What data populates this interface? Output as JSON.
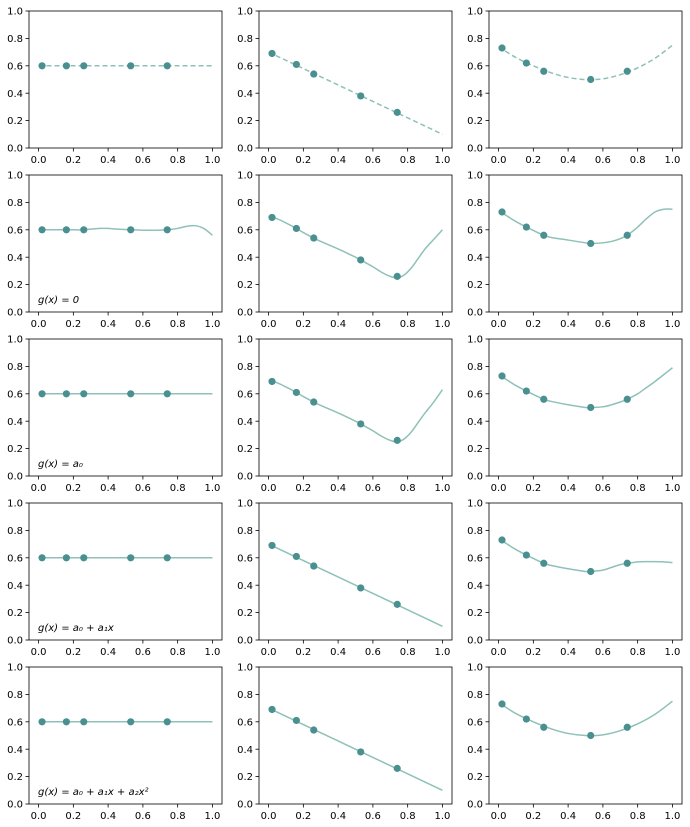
{
  "figure": {
    "point_color": "#4a9090",
    "curve_color": "#8fc1b8",
    "axes_color": "#000000"
  },
  "chart_data": [
    {
      "type": "line",
      "row": 0,
      "col": 0,
      "x": [
        0.02,
        0.16,
        0.26,
        0.53,
        0.74
      ],
      "y": [
        0.6,
        0.6,
        0.6,
        0.6,
        0.6
      ],
      "curve": {
        "style": "dashed",
        "x": [
          0,
          0.2,
          0.4,
          0.6,
          0.8,
          1.0
        ],
        "y": [
          0.6,
          0.6,
          0.6,
          0.6,
          0.6,
          0.6
        ]
      },
      "xlim": [
        0,
        1
      ],
      "ylim": [
        0,
        1
      ],
      "xticks": [
        "0.0",
        "0.2",
        "0.4",
        "0.6",
        "0.8",
        "1.0"
      ],
      "yticks": [
        "0.0",
        "0.2",
        "0.4",
        "0.6",
        "0.8",
        "1.0"
      ],
      "annotation": ""
    },
    {
      "type": "line",
      "row": 0,
      "col": 1,
      "x": [
        0.02,
        0.16,
        0.26,
        0.53,
        0.74
      ],
      "y": [
        0.69,
        0.61,
        0.54,
        0.38,
        0.26
      ],
      "curve": {
        "style": "dashed",
        "x": [
          0,
          0.2,
          0.4,
          0.6,
          0.8,
          1.0
        ],
        "y": [
          0.7,
          0.58,
          0.46,
          0.34,
          0.22,
          0.1
        ]
      },
      "xlim": [
        0,
        1
      ],
      "ylim": [
        0,
        1
      ],
      "xticks": [
        "0.0",
        "0.2",
        "0.4",
        "0.6",
        "0.8",
        "1.0"
      ],
      "yticks": [
        "0.0",
        "0.2",
        "0.4",
        "0.6",
        "0.8",
        "1.0"
      ],
      "annotation": ""
    },
    {
      "type": "line",
      "row": 0,
      "col": 2,
      "x": [
        0.02,
        0.16,
        0.26,
        0.53,
        0.74
      ],
      "y": [
        0.73,
        0.62,
        0.56,
        0.5,
        0.56
      ],
      "curve": {
        "style": "dashed",
        "x": [
          0,
          0.1,
          0.2,
          0.3,
          0.4,
          0.5,
          0.6,
          0.7,
          0.8,
          0.9,
          1.0
        ],
        "y": [
          0.74,
          0.66,
          0.6,
          0.55,
          0.515,
          0.5,
          0.505,
          0.535,
          0.585,
          0.655,
          0.75
        ]
      },
      "xlim": [
        0,
        1
      ],
      "ylim": [
        0,
        1
      ],
      "xticks": [
        "0.0",
        "0.2",
        "0.4",
        "0.6",
        "0.8",
        "1.0"
      ],
      "yticks": [
        "0.0",
        "0.2",
        "0.4",
        "0.6",
        "0.8",
        "1.0"
      ],
      "annotation": ""
    },
    {
      "type": "line",
      "row": 1,
      "col": 0,
      "x": [
        0.02,
        0.16,
        0.26,
        0.53,
        0.74
      ],
      "y": [
        0.6,
        0.6,
        0.6,
        0.6,
        0.6
      ],
      "curve": {
        "style": "solid",
        "x": [
          0,
          0.05,
          0.1,
          0.16,
          0.2,
          0.26,
          0.3,
          0.35,
          0.4,
          0.45,
          0.53,
          0.6,
          0.65,
          0.7,
          0.74,
          0.8,
          0.85,
          0.9,
          0.95,
          1.0
        ],
        "y": [
          0.6,
          0.6,
          0.6,
          0.6,
          0.6,
          0.6,
          0.605,
          0.61,
          0.61,
          0.605,
          0.6,
          0.597,
          0.597,
          0.598,
          0.6,
          0.61,
          0.625,
          0.63,
          0.61,
          0.56
        ]
      },
      "xlim": [
        0,
        1
      ],
      "ylim": [
        0,
        1
      ],
      "xticks": [
        "0.0",
        "0.2",
        "0.4",
        "0.6",
        "0.8",
        "1.0"
      ],
      "yticks": [
        "0.0",
        "0.2",
        "0.4",
        "0.6",
        "0.8",
        "1.0"
      ],
      "annotation": "g(x) = 0"
    },
    {
      "type": "line",
      "row": 1,
      "col": 1,
      "x": [
        0.02,
        0.16,
        0.26,
        0.53,
        0.74
      ],
      "y": [
        0.69,
        0.61,
        0.54,
        0.38,
        0.26
      ],
      "curve": {
        "style": "solid",
        "x": [
          0,
          0.05,
          0.1,
          0.16,
          0.2,
          0.26,
          0.3,
          0.4,
          0.5,
          0.53,
          0.6,
          0.65,
          0.7,
          0.74,
          0.78,
          0.82,
          0.86,
          0.9,
          0.95,
          1.0
        ],
        "y": [
          0.7,
          0.68,
          0.65,
          0.61,
          0.58,
          0.54,
          0.515,
          0.46,
          0.4,
          0.38,
          0.33,
          0.29,
          0.26,
          0.25,
          0.27,
          0.32,
          0.39,
          0.46,
          0.53,
          0.6
        ]
      },
      "xlim": [
        0,
        1
      ],
      "ylim": [
        0,
        1
      ],
      "xticks": [
        "0.0",
        "0.2",
        "0.4",
        "0.6",
        "0.8",
        "1.0"
      ],
      "yticks": [
        "0.0",
        "0.2",
        "0.4",
        "0.6",
        "0.8",
        "1.0"
      ],
      "annotation": ""
    },
    {
      "type": "line",
      "row": 1,
      "col": 2,
      "x": [
        0.02,
        0.16,
        0.26,
        0.53,
        0.74
      ],
      "y": [
        0.73,
        0.62,
        0.56,
        0.5,
        0.56
      ],
      "curve": {
        "style": "solid",
        "x": [
          0,
          0.05,
          0.1,
          0.16,
          0.2,
          0.26,
          0.3,
          0.4,
          0.5,
          0.53,
          0.6,
          0.65,
          0.7,
          0.74,
          0.8,
          0.85,
          0.9,
          0.95,
          1.0
        ],
        "y": [
          0.74,
          0.7,
          0.66,
          0.62,
          0.595,
          0.56,
          0.545,
          0.525,
          0.505,
          0.5,
          0.505,
          0.515,
          0.535,
          0.56,
          0.62,
          0.68,
          0.73,
          0.75,
          0.75
        ]
      },
      "xlim": [
        0,
        1
      ],
      "ylim": [
        0,
        1
      ],
      "xticks": [
        "0.0",
        "0.2",
        "0.4",
        "0.6",
        "0.8",
        "1.0"
      ],
      "yticks": [
        "0.0",
        "0.2",
        "0.4",
        "0.6",
        "0.8",
        "1.0"
      ],
      "annotation": ""
    },
    {
      "type": "line",
      "row": 2,
      "col": 0,
      "x": [
        0.02,
        0.16,
        0.26,
        0.53,
        0.74
      ],
      "y": [
        0.6,
        0.6,
        0.6,
        0.6,
        0.6
      ],
      "curve": {
        "style": "solid",
        "x": [
          0,
          0.2,
          0.4,
          0.6,
          0.8,
          1.0
        ],
        "y": [
          0.6,
          0.6,
          0.6,
          0.6,
          0.6,
          0.6
        ]
      },
      "xlim": [
        0,
        1
      ],
      "ylim": [
        0,
        1
      ],
      "xticks": [
        "0.0",
        "0.2",
        "0.4",
        "0.6",
        "0.8",
        "1.0"
      ],
      "yticks": [
        "0.0",
        "0.2",
        "0.4",
        "0.6",
        "0.8",
        "1.0"
      ],
      "annotation": "g(x) = a₀"
    },
    {
      "type": "line",
      "row": 2,
      "col": 1,
      "x": [
        0.02,
        0.16,
        0.26,
        0.53,
        0.74
      ],
      "y": [
        0.69,
        0.61,
        0.54,
        0.38,
        0.26
      ],
      "curve": {
        "style": "solid",
        "x": [
          0,
          0.05,
          0.1,
          0.16,
          0.2,
          0.26,
          0.3,
          0.4,
          0.5,
          0.53,
          0.6,
          0.65,
          0.7,
          0.74,
          0.78,
          0.82,
          0.86,
          0.9,
          0.95,
          1.0
        ],
        "y": [
          0.7,
          0.68,
          0.65,
          0.61,
          0.58,
          0.54,
          0.515,
          0.46,
          0.4,
          0.38,
          0.33,
          0.29,
          0.26,
          0.25,
          0.27,
          0.32,
          0.39,
          0.46,
          0.54,
          0.63
        ]
      },
      "xlim": [
        0,
        1
      ],
      "ylim": [
        0,
        1
      ],
      "xticks": [
        "0.0",
        "0.2",
        "0.4",
        "0.6",
        "0.8",
        "1.0"
      ],
      "yticks": [
        "0.0",
        "0.2",
        "0.4",
        "0.6",
        "0.8",
        "1.0"
      ],
      "annotation": ""
    },
    {
      "type": "line",
      "row": 2,
      "col": 2,
      "x": [
        0.02,
        0.16,
        0.26,
        0.53,
        0.74
      ],
      "y": [
        0.73,
        0.62,
        0.56,
        0.5,
        0.56
      ],
      "curve": {
        "style": "solid",
        "x": [
          0,
          0.05,
          0.1,
          0.16,
          0.2,
          0.26,
          0.3,
          0.4,
          0.5,
          0.53,
          0.6,
          0.65,
          0.7,
          0.74,
          0.8,
          0.85,
          0.9,
          0.95,
          1.0
        ],
        "y": [
          0.74,
          0.7,
          0.66,
          0.62,
          0.595,
          0.56,
          0.545,
          0.52,
          0.5,
          0.5,
          0.505,
          0.52,
          0.54,
          0.56,
          0.6,
          0.645,
          0.69,
          0.74,
          0.79
        ]
      },
      "xlim": [
        0,
        1
      ],
      "ylim": [
        0,
        1
      ],
      "xticks": [
        "0.0",
        "0.2",
        "0.4",
        "0.6",
        "0.8",
        "1.0"
      ],
      "yticks": [
        "0.0",
        "0.2",
        "0.4",
        "0.6",
        "0.8",
        "1.0"
      ],
      "annotation": ""
    },
    {
      "type": "line",
      "row": 3,
      "col": 0,
      "x": [
        0.02,
        0.16,
        0.26,
        0.53,
        0.74
      ],
      "y": [
        0.6,
        0.6,
        0.6,
        0.6,
        0.6
      ],
      "curve": {
        "style": "solid",
        "x": [
          0,
          0.2,
          0.4,
          0.6,
          0.8,
          1.0
        ],
        "y": [
          0.6,
          0.6,
          0.6,
          0.6,
          0.6,
          0.6
        ]
      },
      "xlim": [
        0,
        1
      ],
      "ylim": [
        0,
        1
      ],
      "xticks": [
        "0.0",
        "0.2",
        "0.4",
        "0.6",
        "0.8",
        "1.0"
      ],
      "yticks": [
        "0.0",
        "0.2",
        "0.4",
        "0.6",
        "0.8",
        "1.0"
      ],
      "annotation": "g(x) = a₀ + a₁x"
    },
    {
      "type": "line",
      "row": 3,
      "col": 1,
      "x": [
        0.02,
        0.16,
        0.26,
        0.53,
        0.74
      ],
      "y": [
        0.69,
        0.61,
        0.54,
        0.38,
        0.26
      ],
      "curve": {
        "style": "solid",
        "x": [
          0,
          0.2,
          0.4,
          0.6,
          0.8,
          1.0
        ],
        "y": [
          0.7,
          0.58,
          0.46,
          0.34,
          0.22,
          0.1
        ]
      },
      "xlim": [
        0,
        1
      ],
      "ylim": [
        0,
        1
      ],
      "xticks": [
        "0.0",
        "0.2",
        "0.4",
        "0.6",
        "0.8",
        "1.0"
      ],
      "yticks": [
        "0.0",
        "0.2",
        "0.4",
        "0.6",
        "0.8",
        "1.0"
      ],
      "annotation": ""
    },
    {
      "type": "line",
      "row": 3,
      "col": 2,
      "x": [
        0.02,
        0.16,
        0.26,
        0.53,
        0.74
      ],
      "y": [
        0.73,
        0.62,
        0.56,
        0.5,
        0.56
      ],
      "curve": {
        "style": "solid",
        "x": [
          0,
          0.05,
          0.1,
          0.16,
          0.2,
          0.26,
          0.3,
          0.4,
          0.5,
          0.53,
          0.6,
          0.65,
          0.7,
          0.74,
          0.8,
          0.85,
          0.9,
          0.95,
          1.0
        ],
        "y": [
          0.74,
          0.7,
          0.66,
          0.62,
          0.595,
          0.56,
          0.545,
          0.52,
          0.5,
          0.5,
          0.51,
          0.53,
          0.55,
          0.56,
          0.57,
          0.572,
          0.572,
          0.57,
          0.565
        ]
      },
      "xlim": [
        0,
        1
      ],
      "ylim": [
        0,
        1
      ],
      "xticks": [
        "0.0",
        "0.2",
        "0.4",
        "0.6",
        "0.8",
        "1.0"
      ],
      "yticks": [
        "0.0",
        "0.2",
        "0.4",
        "0.6",
        "0.8",
        "1.0"
      ],
      "annotation": ""
    },
    {
      "type": "line",
      "row": 4,
      "col": 0,
      "x": [
        0.02,
        0.16,
        0.26,
        0.53,
        0.74
      ],
      "y": [
        0.6,
        0.6,
        0.6,
        0.6,
        0.6
      ],
      "curve": {
        "style": "solid",
        "x": [
          0,
          0.2,
          0.4,
          0.6,
          0.8,
          1.0
        ],
        "y": [
          0.6,
          0.6,
          0.6,
          0.6,
          0.6,
          0.6
        ]
      },
      "xlim": [
        0,
        1
      ],
      "ylim": [
        0,
        1
      ],
      "xticks": [
        "0.0",
        "0.2",
        "0.4",
        "0.6",
        "0.8",
        "1.0"
      ],
      "yticks": [
        "0.0",
        "0.2",
        "0.4",
        "0.6",
        "0.8",
        "1.0"
      ],
      "annotation": "g(x) = a₀ + a₁x + a₂x²"
    },
    {
      "type": "line",
      "row": 4,
      "col": 1,
      "x": [
        0.02,
        0.16,
        0.26,
        0.53,
        0.74
      ],
      "y": [
        0.69,
        0.61,
        0.54,
        0.38,
        0.26
      ],
      "curve": {
        "style": "solid",
        "x": [
          0,
          0.2,
          0.4,
          0.6,
          0.8,
          1.0
        ],
        "y": [
          0.7,
          0.58,
          0.46,
          0.34,
          0.22,
          0.1
        ]
      },
      "xlim": [
        0,
        1
      ],
      "ylim": [
        0,
        1
      ],
      "xticks": [
        "0.0",
        "0.2",
        "0.4",
        "0.6",
        "0.8",
        "1.0"
      ],
      "yticks": [
        "0.0",
        "0.2",
        "0.4",
        "0.6",
        "0.8",
        "1.0"
      ],
      "annotation": ""
    },
    {
      "type": "line",
      "row": 4,
      "col": 2,
      "x": [
        0.02,
        0.16,
        0.26,
        0.53,
        0.74
      ],
      "y": [
        0.73,
        0.62,
        0.56,
        0.5,
        0.56
      ],
      "curve": {
        "style": "solid",
        "x": [
          0,
          0.1,
          0.2,
          0.3,
          0.4,
          0.5,
          0.6,
          0.7,
          0.8,
          0.9,
          1.0
        ],
        "y": [
          0.74,
          0.66,
          0.6,
          0.55,
          0.515,
          0.5,
          0.505,
          0.535,
          0.585,
          0.655,
          0.75
        ]
      },
      "xlim": [
        0,
        1
      ],
      "ylim": [
        0,
        1
      ],
      "xticks": [
        "0.0",
        "0.2",
        "0.4",
        "0.6",
        "0.8",
        "1.0"
      ],
      "yticks": [
        "0.0",
        "0.2",
        "0.4",
        "0.6",
        "0.8",
        "1.0"
      ],
      "annotation": ""
    }
  ]
}
